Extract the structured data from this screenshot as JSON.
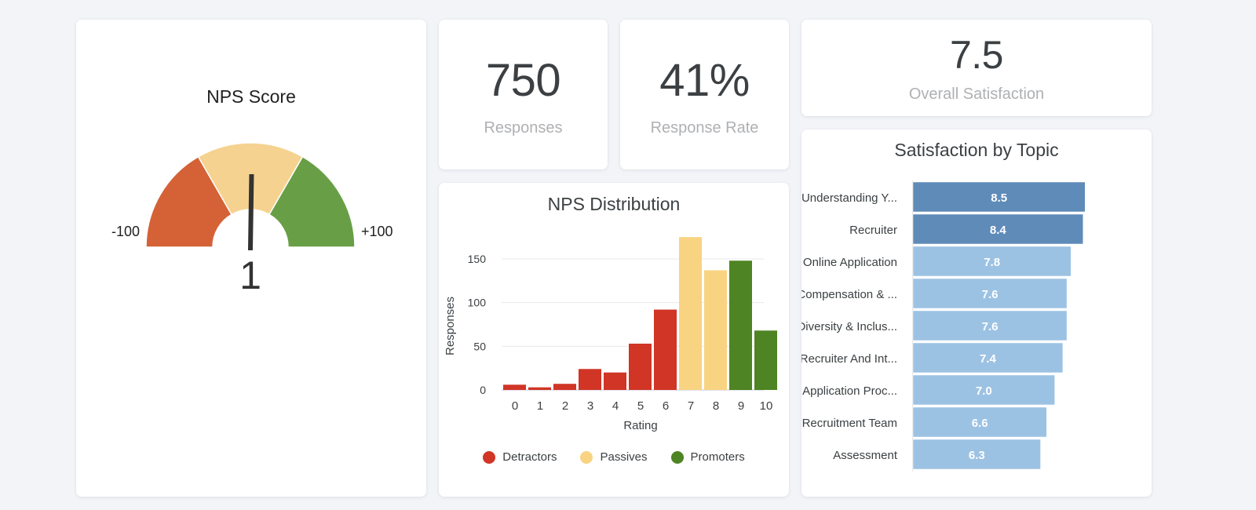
{
  "nps_gauge": {
    "title": "NPS Score",
    "value": 1,
    "value_label": "1",
    "min_label": "-100",
    "max_label": "+100",
    "min": -100,
    "max": 100,
    "bands": [
      {
        "from": -100,
        "to": -33.3,
        "color": "#d46236"
      },
      {
        "from": -33.3,
        "to": 33.3,
        "color": "#f5d28f"
      },
      {
        "from": 33.3,
        "to": 100,
        "color": "#689f46"
      }
    ],
    "needle_color": "#333333"
  },
  "stats": {
    "responses": {
      "value": "750",
      "label": "Responses"
    },
    "response_rate": {
      "value": "41%",
      "label": "Response Rate"
    },
    "overall_satisfaction": {
      "value": "7.5",
      "label": "Overall Satisfaction"
    }
  },
  "chart_data": [
    {
      "type": "bar",
      "title": "NPS Distribution",
      "xlabel": "Rating",
      "ylabel": "Responses",
      "categories": [
        "0",
        "1",
        "2",
        "3",
        "4",
        "5",
        "6",
        "7",
        "8",
        "9",
        "10"
      ],
      "values": [
        6,
        3,
        7,
        24,
        20,
        53,
        92,
        175,
        137,
        148,
        68
      ],
      "groups": [
        "Detractors",
        "Detractors",
        "Detractors",
        "Detractors",
        "Detractors",
        "Detractors",
        "Detractors",
        "Passives",
        "Passives",
        "Promoters",
        "Promoters"
      ],
      "yticks": [
        0,
        50,
        100,
        150
      ],
      "ylim": [
        0,
        180
      ],
      "grid": true,
      "legend": {
        "position": "bottom",
        "entries": [
          {
            "name": "Detractors",
            "color": "#d03526"
          },
          {
            "name": "Passives",
            "color": "#f8d382"
          },
          {
            "name": "Promoters",
            "color": "#4e8423"
          }
        ]
      }
    },
    {
      "type": "bar",
      "orientation": "horizontal",
      "title": "Satisfaction by Topic",
      "categories": [
        "Understanding Y...",
        "Recruiter",
        "Online Application",
        "Compensation & ...",
        "Diversity & Inclus...",
        "Recruiter And Int...",
        "Application Proc...",
        "Recruitment Team",
        "Assessment"
      ],
      "values": [
        8.5,
        8.4,
        7.8,
        7.6,
        7.6,
        7.4,
        7.0,
        6.6,
        6.3
      ],
      "value_labels": [
        "8.5",
        "8.4",
        "7.8",
        "7.6",
        "7.6",
        "7.4",
        "7.0",
        "6.6",
        "6.3"
      ],
      "highlight_top": 2,
      "colors": {
        "highlight": "#5f8bb9",
        "normal": "#9cc2e3"
      },
      "xlim": [
        0,
        10
      ]
    }
  ]
}
